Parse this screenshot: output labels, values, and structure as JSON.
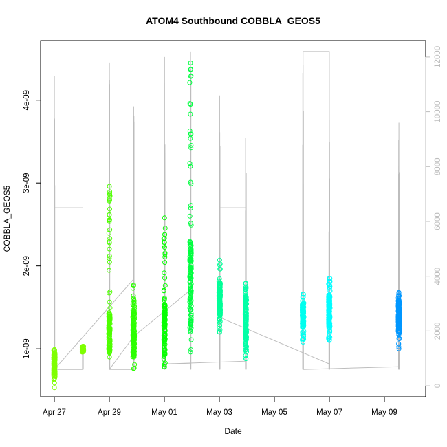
{
  "chart_data": {
    "type": "scatter",
    "title": "ATOM4 Southbound COBBLA_GEOS5",
    "xlabel": "Date",
    "ylabel": "COBBLA_GEOS5",
    "x_range": [
      "2016-04-26T12:00",
      "2016-05-10T12:00"
    ],
    "ylim": [
      4.2e-10,
      4.72e-09
    ],
    "y2lim": [
      -400,
      12600
    ],
    "x_ticks": [
      {
        "date": "2016-04-27",
        "label": "Apr 27"
      },
      {
        "date": "2016-04-29",
        "label": "Apr 29"
      },
      {
        "date": "2016-05-01",
        "label": "May 01"
      },
      {
        "date": "2016-05-03",
        "label": "May 03"
      },
      {
        "date": "2016-05-05",
        "label": "May 05"
      },
      {
        "date": "2016-05-07",
        "label": "May 07"
      },
      {
        "date": "2016-05-09",
        "label": "May 09"
      }
    ],
    "y_ticks": [
      {
        "value": 1e-09,
        "label": "1e-09"
      },
      {
        "value": 2e-09,
        "label": "2e-09"
      },
      {
        "value": 3e-09,
        "label": "3e-09"
      },
      {
        "value": 4e-09,
        "label": "4e-09"
      }
    ],
    "y2_ticks": [
      {
        "value": 0,
        "label": "0"
      },
      {
        "value": 2000,
        "label": "2000"
      },
      {
        "value": 4000,
        "label": "4000"
      },
      {
        "value": 6000,
        "label": "6000"
      },
      {
        "value": 8000,
        "label": "8000"
      },
      {
        "value": 10000,
        "label": "10000"
      },
      {
        "value": 12000,
        "label": "12000"
      }
    ],
    "grid": false,
    "marker": "open-circle",
    "series": [
      {
        "t": "2016-04-27T00:05",
        "color": "#7fff00",
        "ymin": 5.3e-10,
        "ymax": 9.9e-10,
        "core": [
          7e-10,
          9.5e-10
        ],
        "width_h": 0.1
      },
      {
        "t": "2016-04-28T00:55",
        "color": "#7fff00",
        "ymin": 9.6e-10,
        "ymax": 1.03e-09,
        "core": [
          9.7e-10,
          1e-09
        ],
        "width_h": 0.15
      },
      {
        "t": "2016-04-29T00:05",
        "color": "#4fff00",
        "ymin": 9e-10,
        "ymax": 2.96e-09,
        "core": [
          9.5e-10,
          1.45e-09
        ],
        "width_h": 0.08
      },
      {
        "t": "2016-04-29T21:15",
        "color": "#2cff00",
        "ymin": 7.6e-10,
        "ymax": 1.77e-09,
        "core": [
          9e-10,
          1.45e-09
        ],
        "width_h": 0.3
      },
      {
        "t": "2016-05-01T00:10",
        "color": "#06ff00",
        "ymin": 7.8e-10,
        "ymax": 2.58e-09,
        "core": [
          9e-10,
          1.6e-09
        ],
        "width_h": 0.1
      },
      {
        "t": "2016-05-01T22:50",
        "color": "#00ff40",
        "ymin": 9.6e-10,
        "ymax": 4.45e-09,
        "core": [
          1.2e-09,
          2.3e-09
        ],
        "width_h": 0.2
      },
      {
        "t": "2016-05-03T00:15",
        "color": "#00ff98",
        "ymin": 1.2e-09,
        "ymax": 2.07e-09,
        "core": [
          1.35e-09,
          1.8e-09
        ],
        "width_h": 0.15
      },
      {
        "t": "2016-05-03T23:05",
        "color": "#00ffa6",
        "ymin": 8.8e-10,
        "ymax": 1.79e-09,
        "core": [
          1.1e-09,
          1.65e-09
        ],
        "width_h": 0.12
      },
      {
        "t": "2016-05-06T01:00",
        "color": "#00ffee",
        "ymin": 1.08e-09,
        "ymax": 1.66e-09,
        "core": [
          1.25e-09,
          1.55e-09
        ],
        "width_h": 0.25
      },
      {
        "t": "2016-05-06T23:55",
        "color": "#00fdff",
        "ymin": 1.1e-09,
        "ymax": 1.85e-09,
        "core": [
          1.25e-09,
          1.65e-09
        ],
        "width_h": 0.15
      },
      {
        "t": "2016-05-09T12:40",
        "color": "#0097ff",
        "ymin": 1e-09,
        "ymax": 1.68e-09,
        "core": [
          1.2e-09,
          1.6e-09
        ],
        "width_h": 0.2
      }
    ],
    "secondary_series": {
      "name": "",
      "color": "#bdbdbd",
      "spikes": [
        {
          "t": "2016-04-27T00:05",
          "min": 600,
          "max": 11300
        },
        {
          "t": "2016-04-28T00:55",
          "min": 600,
          "max": 1500
        },
        {
          "t": "2016-04-29T00:05",
          "min": 600,
          "max": 11800
        },
        {
          "t": "2016-04-29T21:15",
          "min": 600,
          "max": 10200
        },
        {
          "t": "2016-05-01T00:10",
          "min": 600,
          "max": 12000
        },
        {
          "t": "2016-05-01T22:50",
          "min": 600,
          "max": 12200
        },
        {
          "t": "2016-05-03T00:15",
          "min": 600,
          "max": 10600
        },
        {
          "t": "2016-05-03T23:05",
          "min": 600,
          "max": 10400
        },
        {
          "t": "2016-05-06T01:00",
          "min": 600,
          "max": 11700
        },
        {
          "t": "2016-05-06T23:55",
          "min": 600,
          "max": 9700
        },
        {
          "t": "2016-05-09T12:40",
          "min": 600,
          "max": 9600
        }
      ],
      "path": [
        {
          "t": "2016-04-27T00:05",
          "v": 600
        },
        {
          "t": "2016-04-27T00:05",
          "v": 6500
        },
        {
          "t": "2016-04-28T00:55",
          "v": 6500
        },
        {
          "t": "2016-04-28T00:55",
          "v": 600
        },
        {
          "t": "2016-04-27T00:05",
          "v": 600
        },
        {
          "t": "2016-04-29T21:15",
          "v": 3900
        },
        {
          "t": "2016-04-29T21:15",
          "v": 600
        },
        {
          "t": "2016-04-29T00:05",
          "v": 600
        },
        {
          "t": "2016-04-29T21:15",
          "v": 1800
        },
        {
          "t": "2016-05-01T22:50",
          "v": 3500
        },
        {
          "t": "2016-05-01T22:50",
          "v": 800
        },
        {
          "t": "2016-05-01T00:10",
          "v": 800
        },
        {
          "t": "2016-05-03T23:05",
          "v": 900
        },
        {
          "t": "2016-05-03T23:05",
          "v": 6500
        },
        {
          "t": "2016-05-03T00:15",
          "v": 6500
        },
        {
          "t": "2016-05-03T00:15",
          "v": 2500
        },
        {
          "t": "2016-05-06T23:55",
          "v": 800
        },
        {
          "t": "2016-05-06T23:55",
          "v": 12200
        },
        {
          "t": "2016-05-06T01:00",
          "v": 12200
        },
        {
          "t": "2016-05-06T01:00",
          "v": 600
        },
        {
          "t": "2016-05-09T12:40",
          "v": 700
        }
      ]
    }
  }
}
